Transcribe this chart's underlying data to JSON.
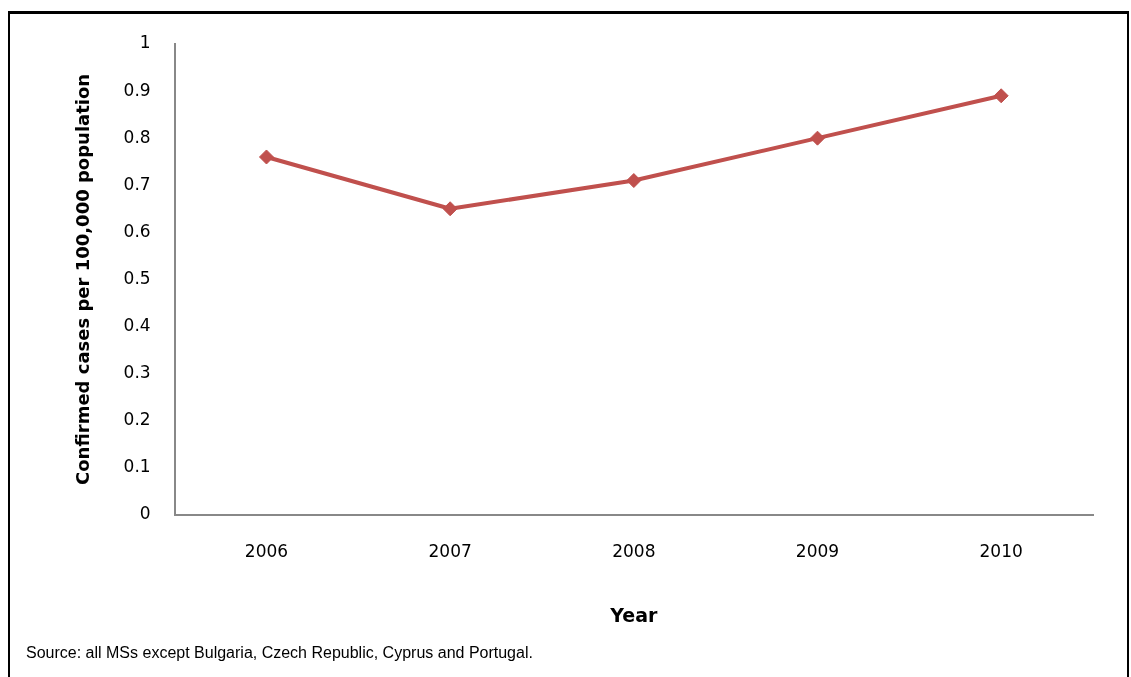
{
  "chart_data": {
    "type": "line",
    "xlabel": "Year",
    "ylabel": "Confirmed cases per 100,000 population",
    "categories": [
      "2006",
      "2007",
      "2008",
      "2009",
      "2010"
    ],
    "series": [
      {
        "color": "#c0504d",
        "values": [
          0.76,
          0.65,
          0.71,
          0.8,
          0.89
        ]
      }
    ],
    "ylim": [
      0,
      1
    ],
    "yticks": [
      0,
      0.1,
      0.2,
      0.3,
      0.4,
      0.5,
      0.6,
      0.7,
      0.8,
      0.9,
      1
    ],
    "grid": false,
    "legend": false,
    "marker": "diamond",
    "line_style": "solid",
    "annotations": [
      "Source: all MSs except Bulgaria, Czech Republic, Cyprus and Portugal."
    ]
  }
}
